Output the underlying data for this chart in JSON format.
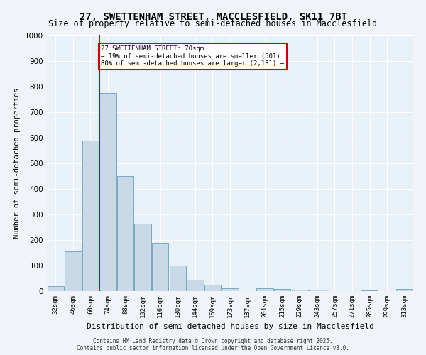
{
  "title1": "27, SWETTENHAM STREET, MACCLESFIELD, SK11 7BT",
  "title2": "Size of property relative to semi-detached houses in Macclesfield",
  "xlabel": "Distribution of semi-detached houses by size in Macclesfield",
  "ylabel": "Number of semi-detached properties",
  "bar_labels": [
    "32sqm",
    "46sqm",
    "60sqm",
    "74sqm",
    "88sqm",
    "102sqm",
    "116sqm",
    "130sqm",
    "144sqm",
    "159sqm",
    "173sqm",
    "187sqm",
    "201sqm",
    "215sqm",
    "229sqm",
    "243sqm",
    "257sqm",
    "271sqm",
    "285sqm",
    "299sqm",
    "313sqm"
  ],
  "bar_heights": [
    20,
    155,
    590,
    775,
    450,
    265,
    190,
    100,
    45,
    25,
    10,
    0,
    10,
    7,
    5,
    5,
    0,
    0,
    2,
    0,
    7
  ],
  "bar_color": "#c9d9e8",
  "bar_edge_color": "#7aaabf",
  "vline_x": 2.5,
  "vline_color": "#cc0000",
  "annotation_text": "27 SWETTENHAM STREET: 70sqm\n← 19% of semi-detached houses are smaller (501)\n80% of semi-detached houses are larger (2,131) →",
  "annotation_box_color": "#ffffff",
  "annotation_box_edge": "#cc0000",
  "ylim": [
    0,
    1000
  ],
  "yticks": [
    0,
    100,
    200,
    300,
    400,
    500,
    600,
    700,
    800,
    900,
    1000
  ],
  "bg_color": "#e8f0f8",
  "plot_bg_color": "#e8f0f8",
  "footer_line1": "Contains HM Land Registry data © Crown copyright and database right 2025.",
  "footer_line2": "Contains public sector information licensed under the Open Government Licence v3.0."
}
